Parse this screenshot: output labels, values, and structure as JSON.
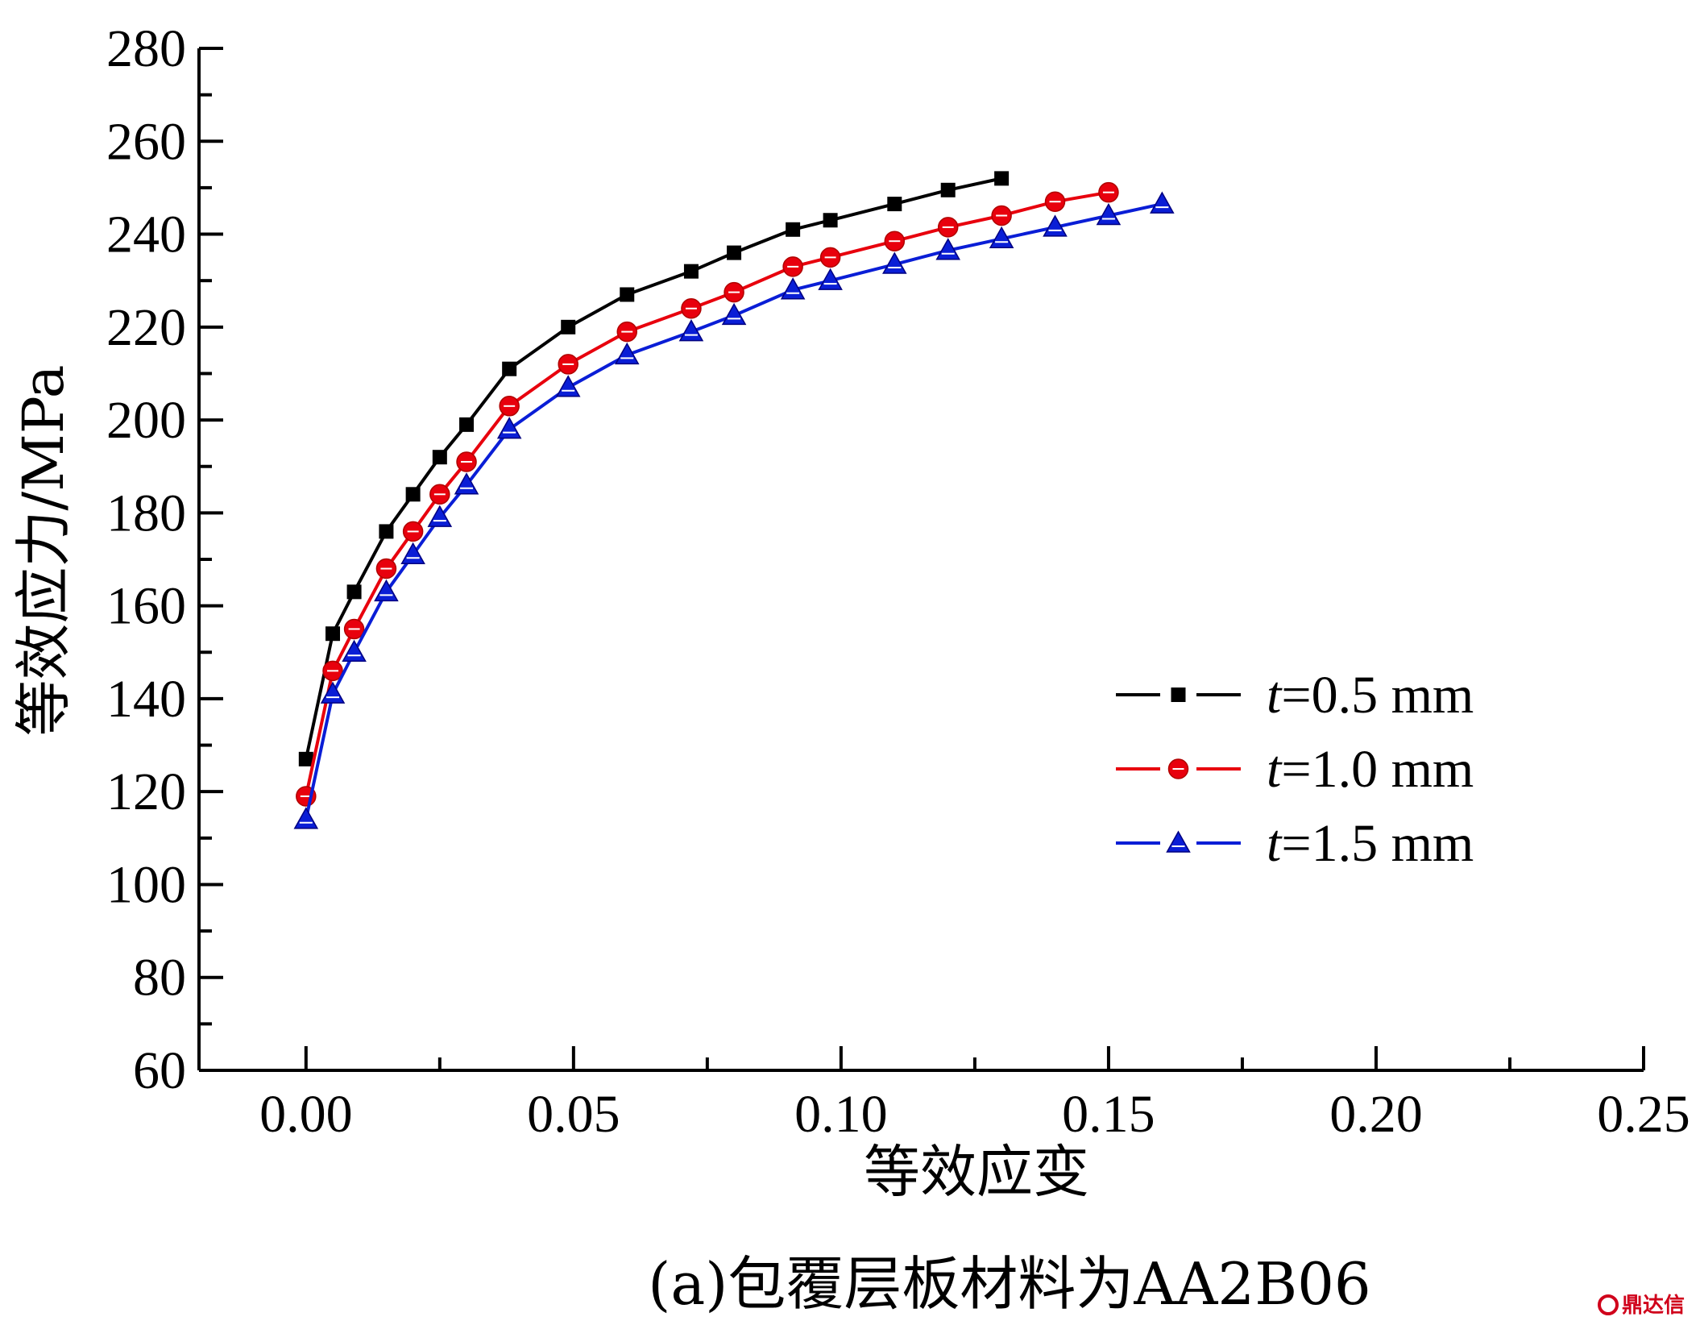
{
  "chart_data": {
    "type": "line",
    "xlabel": "等效应变",
    "ylabel": "等效应力/MPa",
    "xlim": [
      -0.02,
      0.25
    ],
    "ylim": [
      60,
      280
    ],
    "xticks": [
      "0.00",
      "0.05",
      "0.10",
      "0.15",
      "0.20",
      "0.25"
    ],
    "xtick_values": [
      0,
      0.05,
      0.1,
      0.15,
      0.2,
      0.25
    ],
    "yticks": [
      "60",
      "80",
      "100",
      "120",
      "140",
      "160",
      "180",
      "200",
      "220",
      "240",
      "260",
      "280"
    ],
    "ytick_values": [
      60,
      80,
      100,
      120,
      140,
      160,
      180,
      200,
      220,
      240,
      260,
      280
    ],
    "legend_position": "center-right",
    "grid": false,
    "series": [
      {
        "name": "=0.5 mm",
        "name_prefix": "t",
        "color": "#000000",
        "marker": "square",
        "x": [
          0.0,
          0.005,
          0.009,
          0.015,
          0.02,
          0.025,
          0.03,
          0.038,
          0.049,
          0.06,
          0.072,
          0.08,
          0.091,
          0.098,
          0.11,
          0.12,
          0.13
        ],
        "y": [
          127,
          154,
          163,
          176,
          184,
          192,
          199,
          211,
          220,
          227,
          232,
          236,
          241,
          243,
          246.5,
          249.5,
          252
        ]
      },
      {
        "name": "=1.0 mm",
        "name_prefix": "t",
        "color": "#e8000d",
        "marker": "circle",
        "x": [
          0.0,
          0.005,
          0.009,
          0.015,
          0.02,
          0.025,
          0.03,
          0.038,
          0.049,
          0.06,
          0.072,
          0.08,
          0.091,
          0.098,
          0.11,
          0.12,
          0.13,
          0.14,
          0.15
        ],
        "y": [
          119,
          146,
          155,
          168,
          176,
          184,
          191,
          203,
          212,
          219,
          224,
          227.5,
          233,
          235,
          238.5,
          241.5,
          244,
          247,
          249
        ]
      },
      {
        "name": "=1.5 mm",
        "name_prefix": "t",
        "color": "#0a1ed6",
        "marker": "triangle",
        "x": [
          0.0,
          0.005,
          0.009,
          0.015,
          0.02,
          0.025,
          0.03,
          0.038,
          0.049,
          0.06,
          0.072,
          0.08,
          0.091,
          0.098,
          0.11,
          0.12,
          0.13,
          0.14,
          0.15,
          0.16
        ],
        "y": [
          114,
          141,
          150,
          163,
          171,
          179,
          186,
          198,
          207,
          214,
          219,
          222.5,
          228,
          230,
          233.5,
          236.5,
          239,
          241.5,
          244,
          246.5
        ]
      }
    ]
  },
  "caption": "(a)包覆层板材料为AA2B06",
  "watermark": "鼎达信"
}
